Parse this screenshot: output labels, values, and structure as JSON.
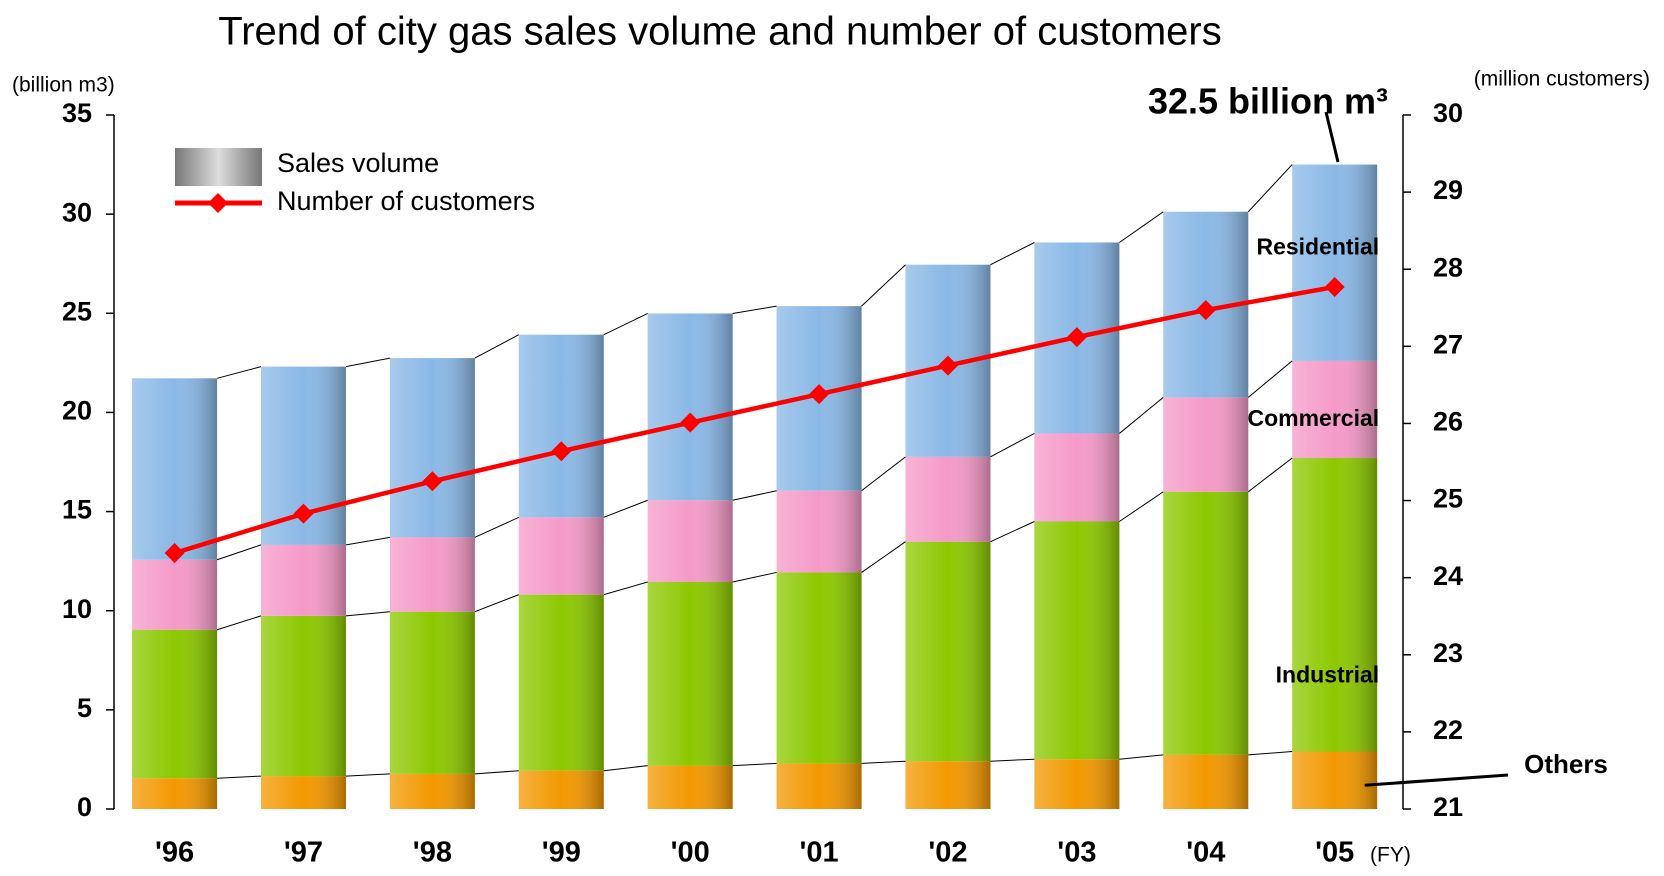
{
  "chart_data": {
    "type": "bar",
    "stacked": true,
    "title": "Trend of city gas sales volume and number of customers",
    "y_label": "(billion m3)",
    "y2_label": "(million customers)",
    "x_label": "(FY)",
    "annotation": "32.5 billion m³",
    "annotation_color": "#ff3300",
    "legend_bar_label": "Sales volume",
    "categories": [
      "'96",
      "'97",
      "'98",
      "'99",
      "'00",
      "'01",
      "'02",
      "'03",
      "'04",
      "'05"
    ],
    "series": [
      {
        "name": "Others",
        "color": "#f39800",
        "values": [
          1.55,
          1.66,
          1.77,
          1.93,
          2.19,
          2.3,
          2.41,
          2.51,
          2.73,
          2.9
        ]
      },
      {
        "name": "Industrial",
        "color": "#8cc800",
        "values": [
          7.49,
          8.08,
          8.18,
          8.88,
          9.26,
          9.63,
          11.07,
          11.99,
          13.27,
          14.8
        ]
      },
      {
        "name": "Commercial",
        "color": "#f59ac8",
        "values": [
          3.53,
          3.58,
          3.75,
          3.9,
          4.12,
          4.12,
          4.28,
          4.44,
          4.76,
          4.9
        ]
      },
      {
        "name": "Residential",
        "color": "#8ab8e6",
        "values": [
          9.15,
          8.99,
          9.04,
          9.21,
          9.42,
          9.31,
          9.69,
          9.63,
          9.36,
          9.9
        ]
      },
      {
        "name": "Number of customers",
        "type": "line",
        "axis": "y2",
        "color": "#ff0000",
        "values": [
          24.32,
          24.83,
          25.25,
          25.64,
          26.01,
          26.38,
          26.75,
          27.12,
          27.47,
          27.77
        ]
      }
    ],
    "ylim": [
      0,
      35
    ],
    "yticks": [
      0,
      5,
      10,
      15,
      20,
      25,
      30,
      35
    ],
    "y2lim": [
      21,
      30
    ],
    "y2ticks": [
      21,
      22,
      23,
      24,
      25,
      26,
      27,
      28,
      29,
      30
    ],
    "legend": "upper left",
    "grid": false
  }
}
